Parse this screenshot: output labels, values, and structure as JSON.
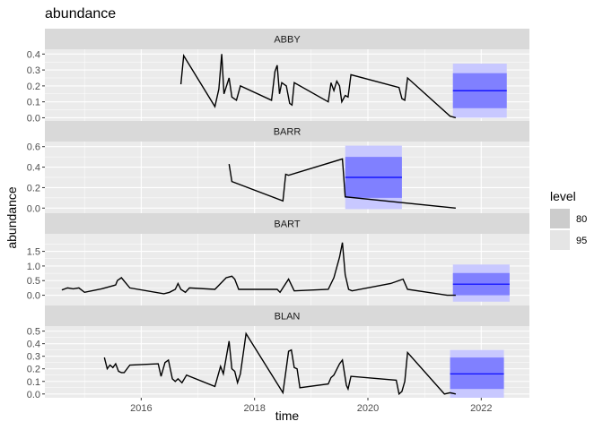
{
  "title": "abundance",
  "chart_data": {
    "type": "line",
    "title": "abundance",
    "xlabel": "time",
    "ylabel": "abundance",
    "xlim": [
      2014.3,
      2022.85
    ],
    "x_ticks": [
      "2016",
      "2018",
      "2020",
      "2022"
    ],
    "x_tick_values": [
      2016,
      2018,
      2020,
      2022
    ],
    "x_minor_values": [
      2015,
      2017,
      2019,
      2021
    ],
    "legend": {
      "title": "level",
      "position": "right",
      "items": [
        {
          "label": "80",
          "color": "#cccccc"
        },
        {
          "label": "95",
          "color": "#e5e5e5"
        }
      ]
    },
    "colors": {
      "line": "#000000",
      "forecast_mean": "#0000ff",
      "interval_80": "#8080ff",
      "interval_95": "#c8c8ff"
    },
    "panels": [
      {
        "name": "ABBY",
        "ylim": [
          -0.02,
          0.43
        ],
        "y_ticks": [
          0.0,
          0.1,
          0.2,
          0.3,
          0.4
        ],
        "y_tick_labels": [
          "0.0",
          "0.1",
          "0.2",
          "0.3",
          "0.4"
        ],
        "series": [
          {
            "x": [
              2016.7,
              2016.75,
              2017.3,
              2017.37,
              2017.42,
              2017.46,
              2017.55,
              2017.6,
              2017.68,
              2017.75,
              2018.3,
              2018.36,
              2018.4,
              2018.44,
              2018.48,
              2018.56,
              2018.62,
              2018.66,
              2018.7,
              2019.3,
              2019.35,
              2019.4,
              2019.45,
              2019.5,
              2019.54,
              2019.6,
              2019.65,
              2019.7,
              2020.55,
              2020.6,
              2020.65,
              2020.7,
              2021.45,
              2021.55
            ],
            "y": [
              0.21,
              0.39,
              0.07,
              0.18,
              0.4,
              0.15,
              0.25,
              0.13,
              0.11,
              0.2,
              0.11,
              0.29,
              0.33,
              0.15,
              0.22,
              0.2,
              0.09,
              0.08,
              0.22,
              0.1,
              0.22,
              0.17,
              0.23,
              0.2,
              0.1,
              0.14,
              0.13,
              0.27,
              0.19,
              0.12,
              0.11,
              0.25,
              0.01,
              0.0
            ]
          }
        ],
        "forecast": {
          "x_start": 2021.5,
          "x_end": 2022.45,
          "mean": 0.17,
          "lo80": 0.06,
          "hi80": 0.28,
          "lo95": 0.0,
          "hi95": 0.34
        }
      },
      {
        "name": "BARR",
        "ylim": [
          -0.05,
          0.65
        ],
        "y_ticks": [
          0.0,
          0.2,
          0.4,
          0.6
        ],
        "y_tick_labels": [
          "0.0",
          "0.2",
          "0.4",
          "0.6"
        ],
        "series": [
          {
            "x": [
              2017.55,
              2017.6,
              2018.5,
              2018.55,
              2018.6,
              2019.55,
              2019.6,
              2021.55
            ],
            "y": [
              0.43,
              0.26,
              0.07,
              0.33,
              0.32,
              0.48,
              0.11,
              0.0
            ]
          }
        ],
        "forecast": {
          "x_start": 2019.6,
          "x_end": 2020.6,
          "mean": 0.3,
          "lo80": 0.1,
          "hi80": 0.5,
          "lo95": -0.01,
          "hi95": 0.61
        }
      },
      {
        "name": "BART",
        "ylim": [
          -0.35,
          2.1
        ],
        "y_ticks": [
          0.0,
          0.5,
          1.0,
          1.5
        ],
        "y_tick_labels": [
          "0.0",
          "0.5",
          "1.0",
          "1.5"
        ],
        "series": [
          {
            "x": [
              2014.6,
              2014.7,
              2014.8,
              2014.9,
              2015.0,
              2015.3,
              2015.55,
              2015.58,
              2015.65,
              2015.8,
              2016.4,
              2016.5,
              2016.6,
              2016.65,
              2016.7,
              2016.78,
              2016.85,
              2017.3,
              2017.4,
              2017.5,
              2017.6,
              2017.65,
              2017.72,
              2017.8,
              2018.4,
              2018.45,
              2018.55,
              2018.6,
              2018.7,
              2019.3,
              2019.4,
              2019.5,
              2019.55,
              2019.6,
              2019.66,
              2019.72,
              2020.4,
              2020.62,
              2020.7,
              2021.4,
              2021.55
            ],
            "y": [
              0.18,
              0.25,
              0.22,
              0.25,
              0.1,
              0.22,
              0.35,
              0.5,
              0.6,
              0.25,
              0.05,
              0.1,
              0.2,
              0.4,
              0.2,
              0.1,
              0.25,
              0.2,
              0.4,
              0.6,
              0.65,
              0.55,
              0.2,
              0.2,
              0.2,
              0.1,
              0.4,
              0.55,
              0.15,
              0.2,
              0.6,
              1.3,
              1.8,
              0.7,
              0.2,
              0.15,
              0.4,
              0.55,
              0.2,
              0.0,
              0.0
            ]
          }
        ],
        "forecast": {
          "x_start": 2021.5,
          "x_end": 2022.5,
          "mean": 0.38,
          "lo80": 0.0,
          "hi80": 0.76,
          "lo95": -0.22,
          "hi95": 1.05
        }
      },
      {
        "name": "BLAN",
        "ylim": [
          -0.03,
          0.54
        ],
        "y_ticks": [
          0.0,
          0.1,
          0.2,
          0.3,
          0.4,
          0.5
        ],
        "y_tick_labels": [
          "0.0",
          "0.1",
          "0.2",
          "0.3",
          "0.4",
          "0.5"
        ],
        "series": [
          {
            "x": [
              2015.35,
              2015.4,
              2015.45,
              2015.5,
              2015.55,
              2015.6,
              2015.65,
              2015.7,
              2015.8,
              2016.3,
              2016.35,
              2016.42,
              2016.48,
              2016.55,
              2016.6,
              2016.65,
              2016.72,
              2016.8,
              2017.3,
              2017.4,
              2017.45,
              2017.55,
              2017.6,
              2017.65,
              2017.7,
              2017.75,
              2017.85,
              2018.5,
              2018.55,
              2018.6,
              2018.65,
              2018.7,
              2018.75,
              2018.8,
              2019.3,
              2019.35,
              2019.4,
              2019.5,
              2019.55,
              2019.62,
              2019.65,
              2019.7,
              2020.5,
              2020.55,
              2020.6,
              2020.65,
              2020.7,
              2021.35,
              2021.45,
              2021.55
            ],
            "y": [
              0.29,
              0.2,
              0.23,
              0.21,
              0.24,
              0.18,
              0.17,
              0.17,
              0.23,
              0.24,
              0.14,
              0.25,
              0.27,
              0.12,
              0.1,
              0.12,
              0.09,
              0.15,
              0.06,
              0.22,
              0.16,
              0.42,
              0.2,
              0.18,
              0.09,
              0.16,
              0.48,
              0.01,
              0.17,
              0.34,
              0.35,
              0.21,
              0.2,
              0.05,
              0.08,
              0.13,
              0.15,
              0.24,
              0.27,
              0.07,
              0.04,
              0.14,
              0.11,
              0.0,
              0.02,
              0.1,
              0.33,
              0.0,
              0.01,
              0.0
            ]
          }
        ],
        "forecast": {
          "x_start": 2021.45,
          "x_end": 2022.4,
          "mean": 0.16,
          "lo80": 0.04,
          "hi80": 0.29,
          "lo95": -0.03,
          "hi95": 0.35
        }
      }
    ]
  }
}
